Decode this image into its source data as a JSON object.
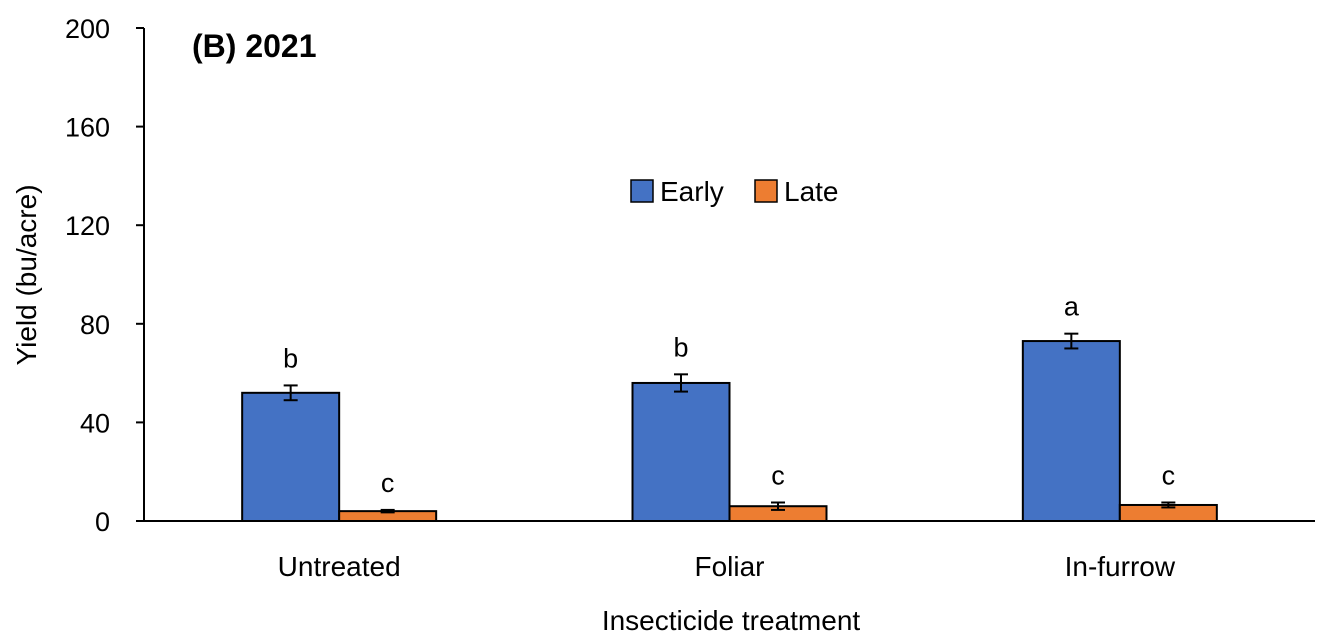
{
  "chart_data": {
    "type": "bar",
    "title": "(B) 2021",
    "xlabel": "Insecticide treatment",
    "ylabel": "Yield (bu/acre)",
    "ylim": [
      0,
      200
    ],
    "yticks": [
      0,
      40,
      80,
      120,
      160,
      200
    ],
    "grid": false,
    "legend_position": "center-top",
    "categories": [
      "Untreated",
      "Foliar",
      "In-furrow"
    ],
    "series": [
      {
        "name": "Early",
        "color": "#4472C4",
        "values": [
          52,
          56,
          73
        ],
        "errors": [
          3,
          3.5,
          3
        ],
        "labels": [
          "b",
          "b",
          "a"
        ]
      },
      {
        "name": "Late",
        "color": "#ED7D31",
        "values": [
          4,
          6,
          6.5
        ],
        "errors": [
          0.5,
          1.5,
          1
        ],
        "labels": [
          "c",
          "c",
          "c"
        ]
      }
    ]
  }
}
